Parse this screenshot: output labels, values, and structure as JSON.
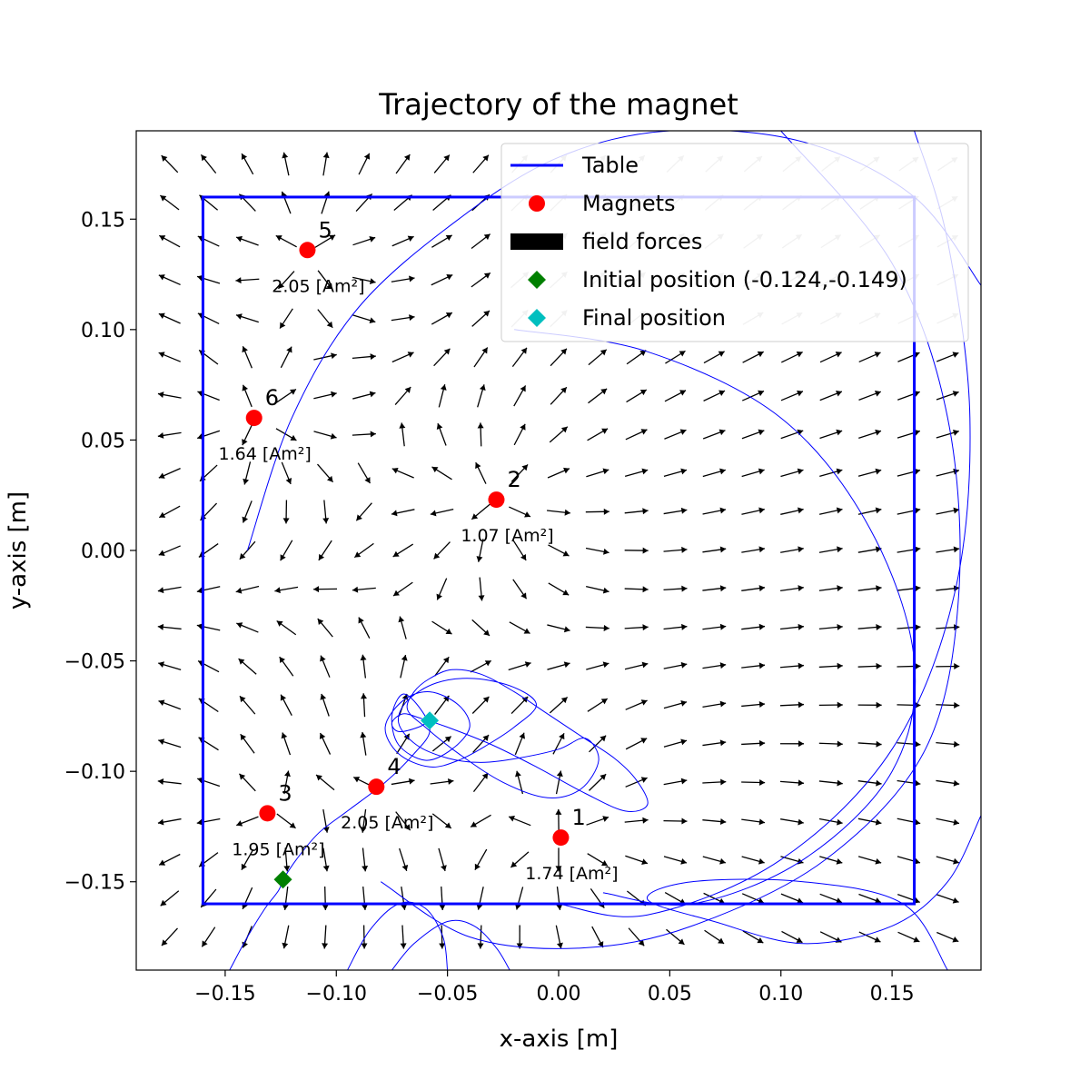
{
  "chart_data": {
    "type": "scatter",
    "title": "Trajectory of the magnet",
    "xlabel": "x-axis [m]",
    "ylabel": "y-axis [m]",
    "xlim": [
      -0.19,
      0.19
    ],
    "ylim": [
      -0.19,
      0.19
    ],
    "xticks": [
      -0.15,
      -0.1,
      -0.05,
      0.0,
      0.05,
      0.1,
      0.15
    ],
    "yticks": [
      -0.15,
      -0.1,
      -0.05,
      0.0,
      0.05,
      0.1,
      0.15
    ],
    "xtick_labels": [
      "−0.15",
      "−0.10",
      "−0.05",
      "0.00",
      "0.05",
      "0.10",
      "0.15"
    ],
    "ytick_labels": [
      "−0.15",
      "−0.10",
      "−0.05",
      "0.00",
      "0.05",
      "0.10",
      "0.15"
    ],
    "grid": false,
    "legend_position": "top-right",
    "legend": [
      {
        "label": "Table",
        "kind": "line",
        "color": "#0000ff"
      },
      {
        "label": "Magnets",
        "kind": "dot",
        "color": "#ff0000"
      },
      {
        "label": "field forces",
        "kind": "bar",
        "color": "#000000"
      },
      {
        "label": "Initial position (-0.124,-0.149)",
        "kind": "diamond",
        "color": "#008000"
      },
      {
        "label": "Final position",
        "kind": "diamond",
        "color": "#00bfbf"
      }
    ],
    "table": {
      "x": [
        -0.16,
        0.16
      ],
      "y": [
        -0.16,
        0.16
      ],
      "color": "#0000ff"
    },
    "magnets": [
      {
        "id": "1",
        "x": 0.001,
        "y": -0.13,
        "moment": "1.74 [Am²]"
      },
      {
        "id": "2",
        "x": -0.028,
        "y": 0.023,
        "moment": "1.07 [Am²]"
      },
      {
        "id": "3",
        "x": -0.131,
        "y": -0.119,
        "moment": "1.95 [Am²]"
      },
      {
        "id": "4",
        "x": -0.082,
        "y": -0.107,
        "moment": "2.05 [Am²]"
      },
      {
        "id": "5",
        "x": -0.113,
        "y": 0.136,
        "moment": "2.05 [Am²]"
      },
      {
        "id": "6",
        "x": -0.137,
        "y": 0.06,
        "moment": "1.64 [Am²]"
      }
    ],
    "initial_position": {
      "x": -0.124,
      "y": -0.149
    },
    "final_position": {
      "x": -0.058,
      "y": -0.077
    },
    "field": {
      "x_range": [
        -0.175,
        0.175
      ],
      "y_range": [
        -0.175,
        0.175
      ],
      "step": 0.0175
    },
    "trajectory": {
      "color": "#0000ff",
      "x": [
        -0.124,
        -0.118,
        -0.108,
        -0.095,
        -0.078,
        -0.065,
        -0.058,
        -0.062,
        -0.07,
        -0.075,
        -0.072,
        -0.06,
        -0.048,
        -0.04,
        -0.045,
        -0.058,
        -0.07,
        -0.078,
        -0.072,
        -0.058,
        -0.045,
        -0.032,
        -0.02,
        -0.01,
        -0.02,
        -0.038,
        -0.055,
        -0.068,
        -0.072,
        -0.064,
        -0.05,
        -0.035,
        -0.018,
        0.0,
        0.012,
        0.018,
        0.01,
        -0.005,
        -0.025,
        -0.045,
        -0.06,
        -0.068,
        -0.065,
        -0.058,
        -0.048,
        -0.035,
        -0.02,
        -0.005,
        0.01,
        0.025,
        0.035,
        0.04,
        0.03,
        0.012,
        -0.01,
        -0.03,
        -0.05,
        -0.062,
        -0.07,
        -0.075,
        -0.072,
        -0.063,
        -0.058
      ],
      "y": [
        -0.149,
        -0.14,
        -0.128,
        -0.118,
        -0.105,
        -0.092,
        -0.082,
        -0.072,
        -0.065,
        -0.075,
        -0.088,
        -0.095,
        -0.09,
        -0.08,
        -0.07,
        -0.064,
        -0.068,
        -0.08,
        -0.092,
        -0.098,
        -0.095,
        -0.088,
        -0.08,
        -0.07,
        -0.062,
        -0.058,
        -0.06,
        -0.068,
        -0.078,
        -0.088,
        -0.094,
        -0.096,
        -0.094,
        -0.09,
        -0.085,
        -0.095,
        -0.108,
        -0.112,
        -0.105,
        -0.092,
        -0.08,
        -0.072,
        -0.064,
        -0.058,
        -0.054,
        -0.056,
        -0.064,
        -0.074,
        -0.084,
        -0.094,
        -0.104,
        -0.115,
        -0.118,
        -0.11,
        -0.098,
        -0.088,
        -0.08,
        -0.076,
        -0.074,
        -0.078,
        -0.082,
        -0.08,
        -0.077
      ]
    },
    "outer_paths": [
      {
        "x": [
          0.19,
          0.16,
          0.11,
          0.05,
          0.0,
          -0.045,
          -0.09,
          -0.12,
          -0.14
        ],
        "y": [
          0.12,
          0.16,
          0.185,
          0.19,
          0.178,
          0.15,
          0.11,
          0.06,
          0.0
        ]
      },
      {
        "x": [
          0.16,
          0.175,
          0.185,
          0.178,
          0.15,
          0.1,
          0.04,
          0.0
        ],
        "y": [
          0.19,
          0.14,
          0.06,
          -0.02,
          -0.09,
          -0.14,
          -0.165,
          -0.16
        ]
      },
      {
        "x": [
          0.1,
          0.15,
          0.175,
          0.18,
          0.165,
          0.12,
          0.06,
          0.01,
          -0.04,
          -0.08
        ],
        "y": [
          0.19,
          0.13,
          0.06,
          -0.02,
          -0.09,
          -0.14,
          -0.17,
          -0.18,
          -0.175,
          -0.15
        ]
      },
      {
        "x": [
          -0.02,
          0.04,
          0.1,
          0.14,
          0.16,
          0.15,
          0.11,
          0.06,
          0.02
        ],
        "y": [
          0.1,
          0.09,
          0.06,
          0.01,
          -0.05,
          -0.1,
          -0.14,
          -0.16,
          -0.155
        ]
      },
      {
        "x": [
          0.19,
          0.175,
          0.15,
          0.11,
          0.07,
          0.04,
          0.06,
          0.11,
          0.155,
          0.175
        ],
        "y": [
          -0.12,
          -0.15,
          -0.17,
          -0.178,
          -0.168,
          -0.158,
          -0.15,
          -0.15,
          -0.16,
          -0.19
        ]
      },
      {
        "x": [
          -0.148,
          -0.14,
          -0.132,
          -0.126,
          -0.124
        ],
        "y": [
          -0.19,
          -0.175,
          -0.162,
          -0.154,
          -0.149
        ]
      },
      {
        "x": [
          -0.095,
          -0.085,
          -0.072,
          -0.06,
          -0.052,
          -0.05
        ],
        "y": [
          -0.19,
          -0.172,
          -0.16,
          -0.162,
          -0.175,
          -0.19
        ]
      },
      {
        "x": [
          -0.075,
          -0.065,
          -0.05,
          -0.038,
          -0.028,
          -0.022
        ],
        "y": [
          -0.19,
          -0.178,
          -0.168,
          -0.17,
          -0.18,
          -0.19
        ]
      }
    ]
  }
}
